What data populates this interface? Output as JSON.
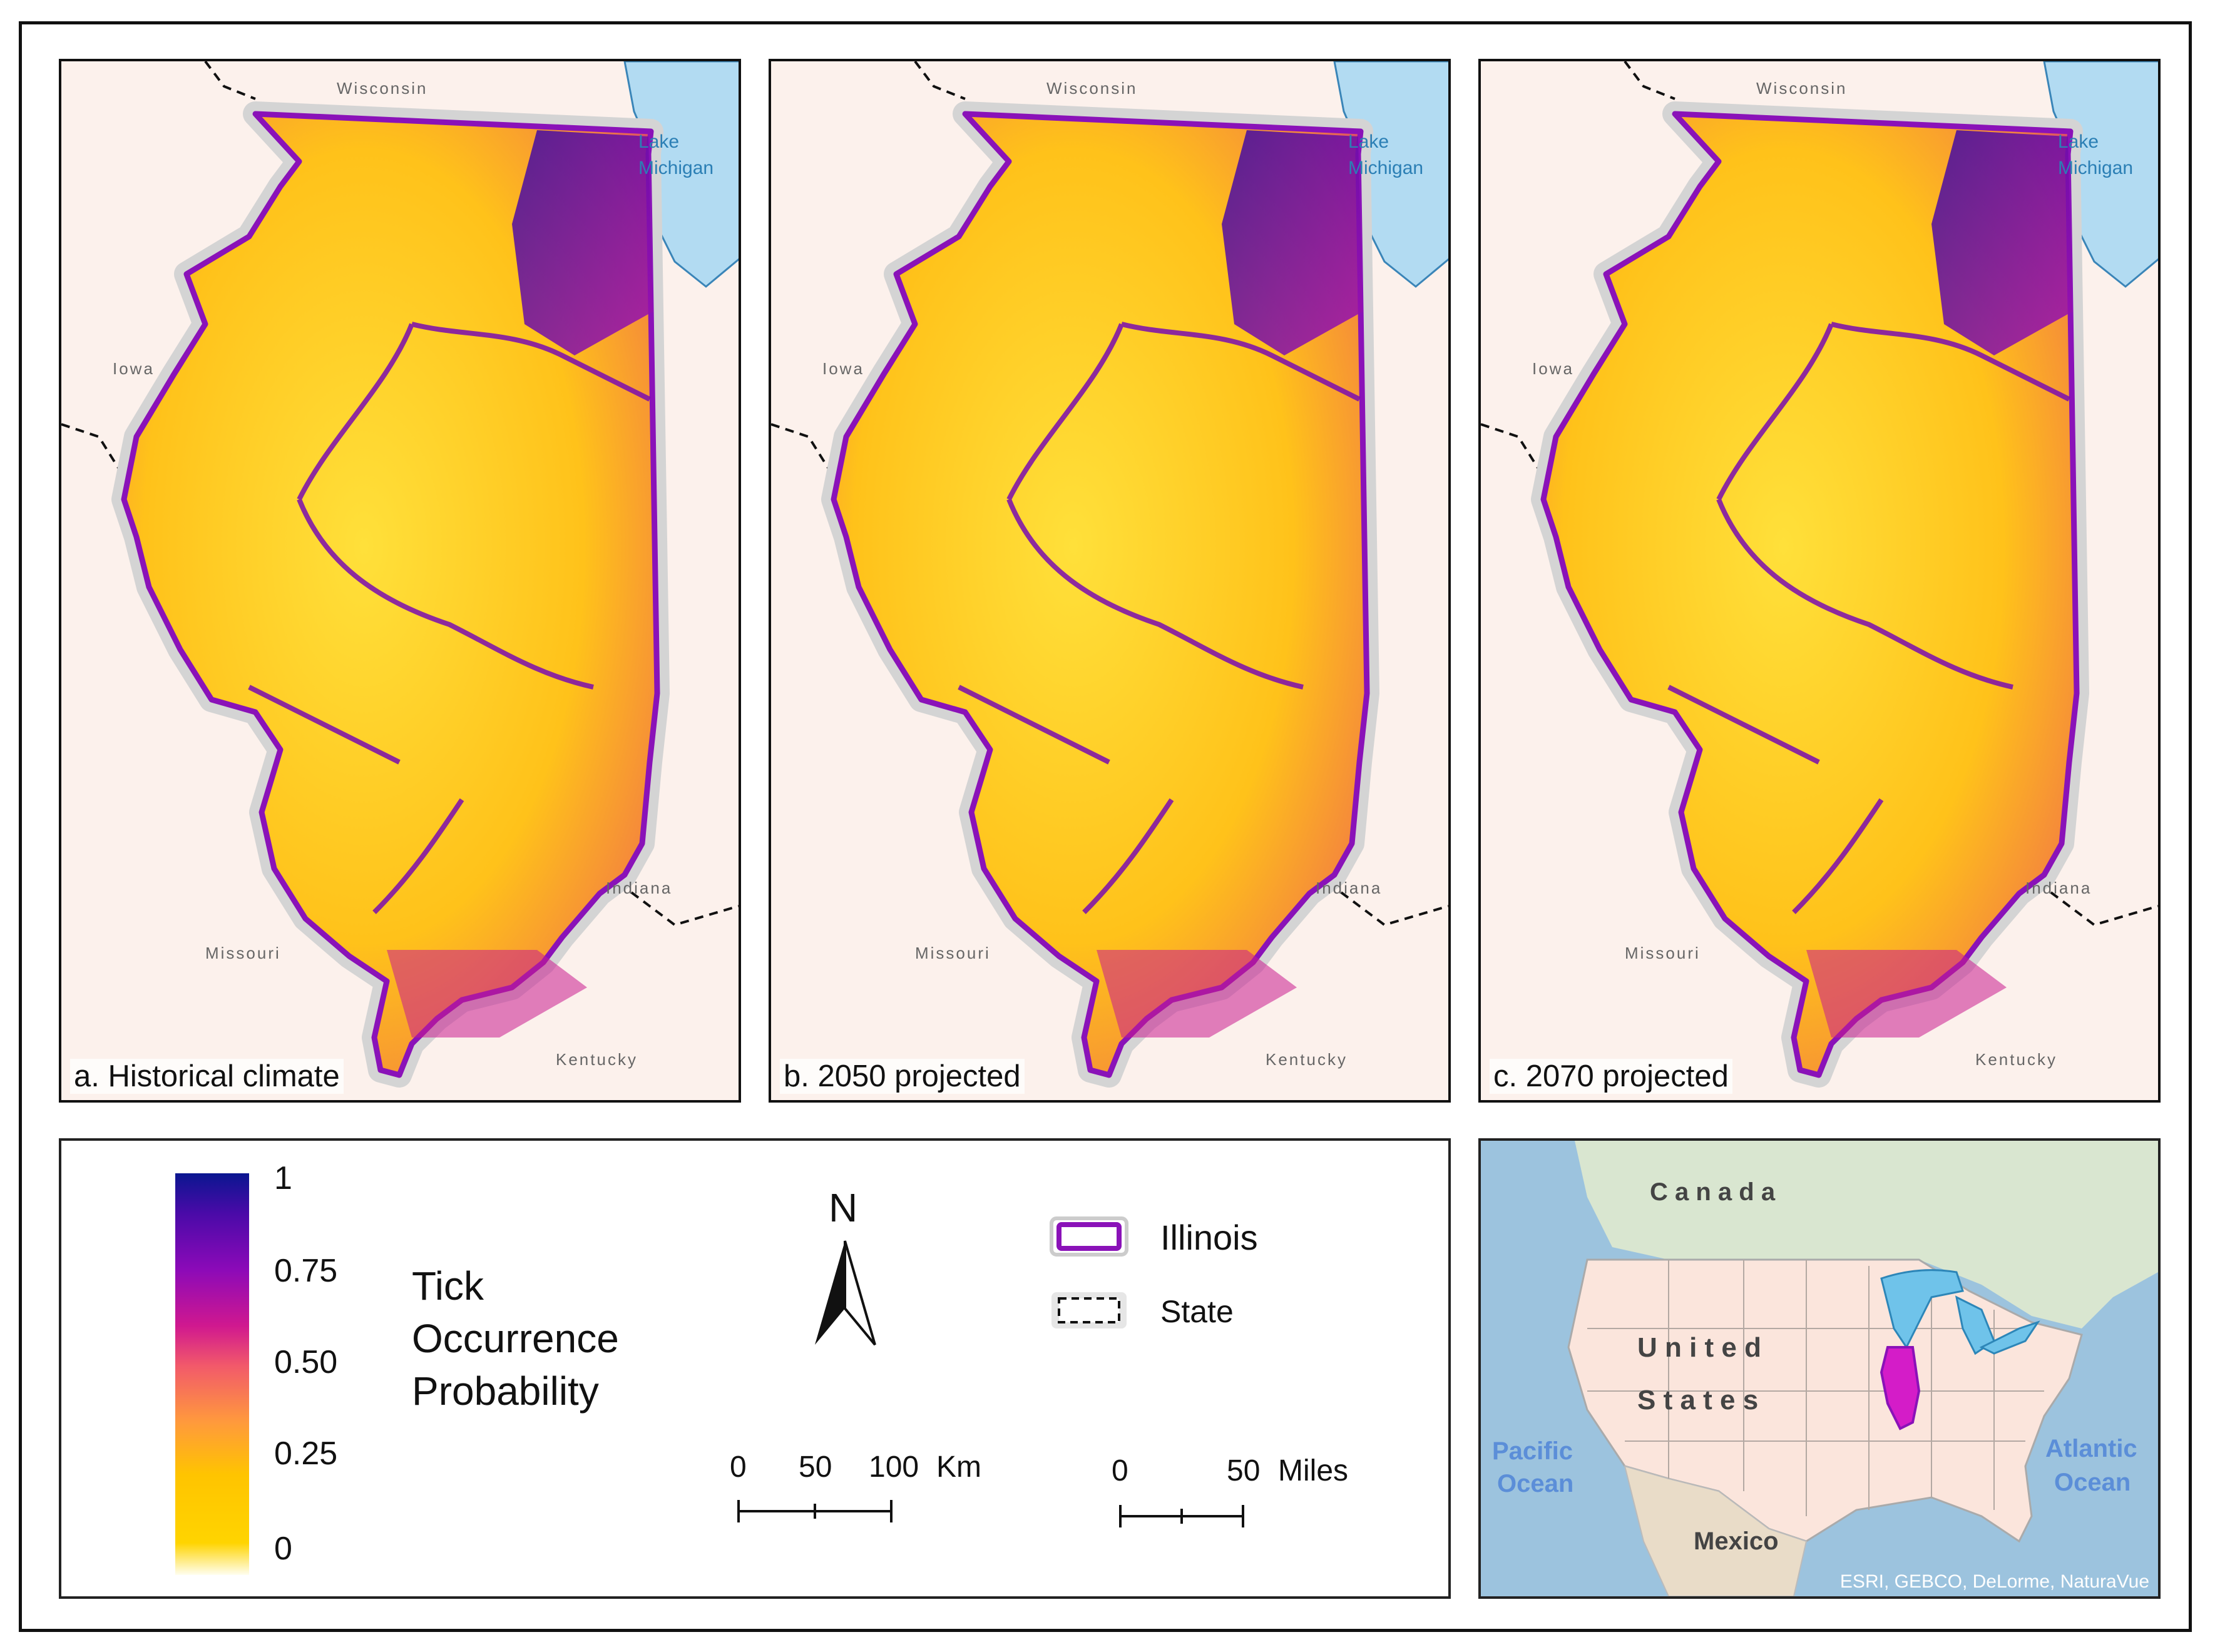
{
  "panels": [
    {
      "title": "a. Historical climate"
    },
    {
      "title": "b. 2050 projected"
    },
    {
      "title": "c. 2070 projected"
    }
  ],
  "map_labels": {
    "wisconsin": "Wisconsin",
    "iowa": "Iowa",
    "missouri": "Missouri",
    "indiana": "Indiana",
    "kentucky": "Kentucky",
    "lake_line1": "Lake",
    "lake_line2": "Michigan"
  },
  "legend": {
    "title_lines": [
      "Tick",
      "Occurrence",
      "Probability"
    ],
    "ticks": [
      "1",
      "0.75",
      "0.50",
      "0.25",
      "0"
    ],
    "north": "N",
    "illinois": "Illinois",
    "state": "State",
    "km_scale": {
      "labels": [
        "0",
        "50",
        "100"
      ],
      "unit": "Km"
    },
    "mi_scale": {
      "labels": [
        "0",
        "50"
      ],
      "unit": "Miles"
    }
  },
  "inset": {
    "canada": "C a n a d a",
    "us_line1": "U n i t e d",
    "us_line2": "S t a t e s",
    "mexico": "Mexico",
    "pacific_line1": "Pacific",
    "pacific_line2": "Ocean",
    "atlantic_line1": "Atlantic",
    "atlantic_line2": "Ocean",
    "credit": "ESRI, GEBCO, DeLorme, NaturaVue"
  },
  "colors": {
    "illinois_outline": "#8a12b8",
    "lake": "#b2dbf2",
    "background": "#fcf1ec",
    "highlight_state": "#d41cc8",
    "colorbar": [
      "#fffef0",
      "#ffd400",
      "#ff9a3c",
      "#f25a6a",
      "#d0188f",
      "#8c0ab8",
      "#4a0aa8",
      "#0a1690"
    ]
  }
}
